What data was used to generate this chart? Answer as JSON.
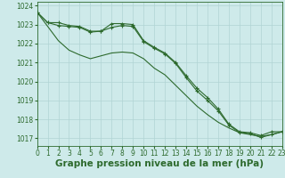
{
  "line1_marked": [
    1023.65,
    1023.1,
    1023.1,
    1022.95,
    1022.9,
    1022.65,
    1022.65,
    1023.05,
    1023.05,
    1023.0,
    1022.15,
    1021.8,
    1021.5,
    1021.0,
    1020.3,
    1019.65,
    1019.15,
    1018.55,
    1017.75,
    1017.35,
    1017.3,
    1017.15,
    1017.35,
    1017.35
  ],
  "line2_plain": [
    1023.65,
    1022.9,
    1022.15,
    1021.65,
    1021.4,
    1021.2,
    1021.35,
    1021.5,
    1021.55,
    1021.5,
    1021.2,
    1020.7,
    1020.35,
    1019.8,
    1019.25,
    1018.7,
    1018.25,
    1017.85,
    1017.55,
    1017.3,
    1017.2,
    1017.1,
    1017.2,
    1017.35
  ],
  "line3_marked": [
    1023.65,
    1023.1,
    1022.95,
    1022.9,
    1022.85,
    1022.6,
    1022.65,
    1022.85,
    1022.95,
    1022.9,
    1022.1,
    1021.75,
    1021.45,
    1020.95,
    1020.2,
    1019.5,
    1019.0,
    1018.45,
    1017.7,
    1017.3,
    1017.25,
    1017.05,
    1017.2,
    1017.35
  ],
  "x": [
    0,
    1,
    2,
    3,
    4,
    5,
    6,
    7,
    8,
    9,
    10,
    11,
    12,
    13,
    14,
    15,
    16,
    17,
    18,
    19,
    20,
    21,
    22,
    23
  ],
  "xlim": [
    0,
    23
  ],
  "ylim": [
    1016.6,
    1024.2
  ],
  "yticks": [
    1017,
    1018,
    1019,
    1020,
    1021,
    1022,
    1023,
    1024
  ],
  "xticks": [
    0,
    1,
    2,
    3,
    4,
    5,
    6,
    7,
    8,
    9,
    10,
    11,
    12,
    13,
    14,
    15,
    16,
    17,
    18,
    19,
    20,
    21,
    22,
    23
  ],
  "xlabel": "Graphe pression niveau de la mer (hPa)",
  "line_color": "#2d6a2d",
  "bg_color": "#ceeaea",
  "grid_color": "#b0d4d4",
  "marker": "+",
  "marker_size": 3.5,
  "linewidth": 0.8,
  "xlabel_fontsize": 7.5,
  "tick_fontsize": 5.5
}
